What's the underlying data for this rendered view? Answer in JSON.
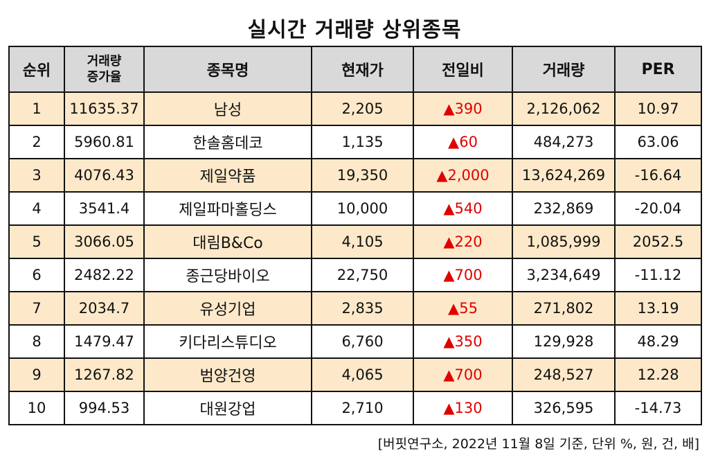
{
  "title": "실시간 거래량 상위종목",
  "columns": {
    "rank": "순위",
    "growth_line1": "거래량",
    "growth_line2": "증가율",
    "name": "종목명",
    "price": "현재가",
    "change": "전일비",
    "volume": "거래량",
    "per": "PER"
  },
  "rows": [
    {
      "rank": "1",
      "growth": "11635.37",
      "name": "남성",
      "price": "2,205",
      "change_arrow": "▲",
      "change": "390",
      "volume": "2,126,062",
      "per": "10.97"
    },
    {
      "rank": "2",
      "growth": "5960.81",
      "name": "한솔홈데코",
      "price": "1,135",
      "change_arrow": "▲",
      "change": "60",
      "volume": "484,273",
      "per": "63.06"
    },
    {
      "rank": "3",
      "growth": "4076.43",
      "name": "제일약품",
      "price": "19,350",
      "change_arrow": "▲",
      "change": "2,000",
      "volume": "13,624,269",
      "per": "-16.64"
    },
    {
      "rank": "4",
      "growth": "3541.4",
      "name": "제일파마홀딩스",
      "price": "10,000",
      "change_arrow": "▲",
      "change": "540",
      "volume": "232,869",
      "per": "-20.04"
    },
    {
      "rank": "5",
      "growth": "3066.05",
      "name": "대림B&Co",
      "price": "4,105",
      "change_arrow": "▲",
      "change": "220",
      "volume": "1,085,999",
      "per": "2052.5"
    },
    {
      "rank": "6",
      "growth": "2482.22",
      "name": "종근당바이오",
      "price": "22,750",
      "change_arrow": "▲",
      "change": "700",
      "volume": "3,234,649",
      "per": "-11.12"
    },
    {
      "rank": "7",
      "growth": "2034.7",
      "name": "유성기업",
      "price": "2,835",
      "change_arrow": "▲",
      "change": "55",
      "volume": "271,802",
      "per": "13.19"
    },
    {
      "rank": "8",
      "growth": "1479.47",
      "name": "키다리스튜디오",
      "price": "6,760",
      "change_arrow": "▲",
      "change": "350",
      "volume": "129,928",
      "per": "48.29"
    },
    {
      "rank": "9",
      "growth": "1267.82",
      "name": "범양건영",
      "price": "4,065",
      "change_arrow": "▲",
      "change": "700",
      "volume": "248,527",
      "per": "12.28"
    },
    {
      "rank": "10",
      "growth": "994.53",
      "name": "대원강업",
      "price": "2,710",
      "change_arrow": "▲",
      "change": "130",
      "volume": "326,595",
      "per": "-14.73"
    }
  ],
  "footnote": "[버핏연구소, 2022년 11월 8일 기준, 단위 %, 원, 건, 배]",
  "colors": {
    "header_bg": "#d9d9d9",
    "odd_row_bg": "#fde9c9",
    "even_row_bg": "#ffffff",
    "up_color": "#e00000",
    "border": "#111111"
  }
}
